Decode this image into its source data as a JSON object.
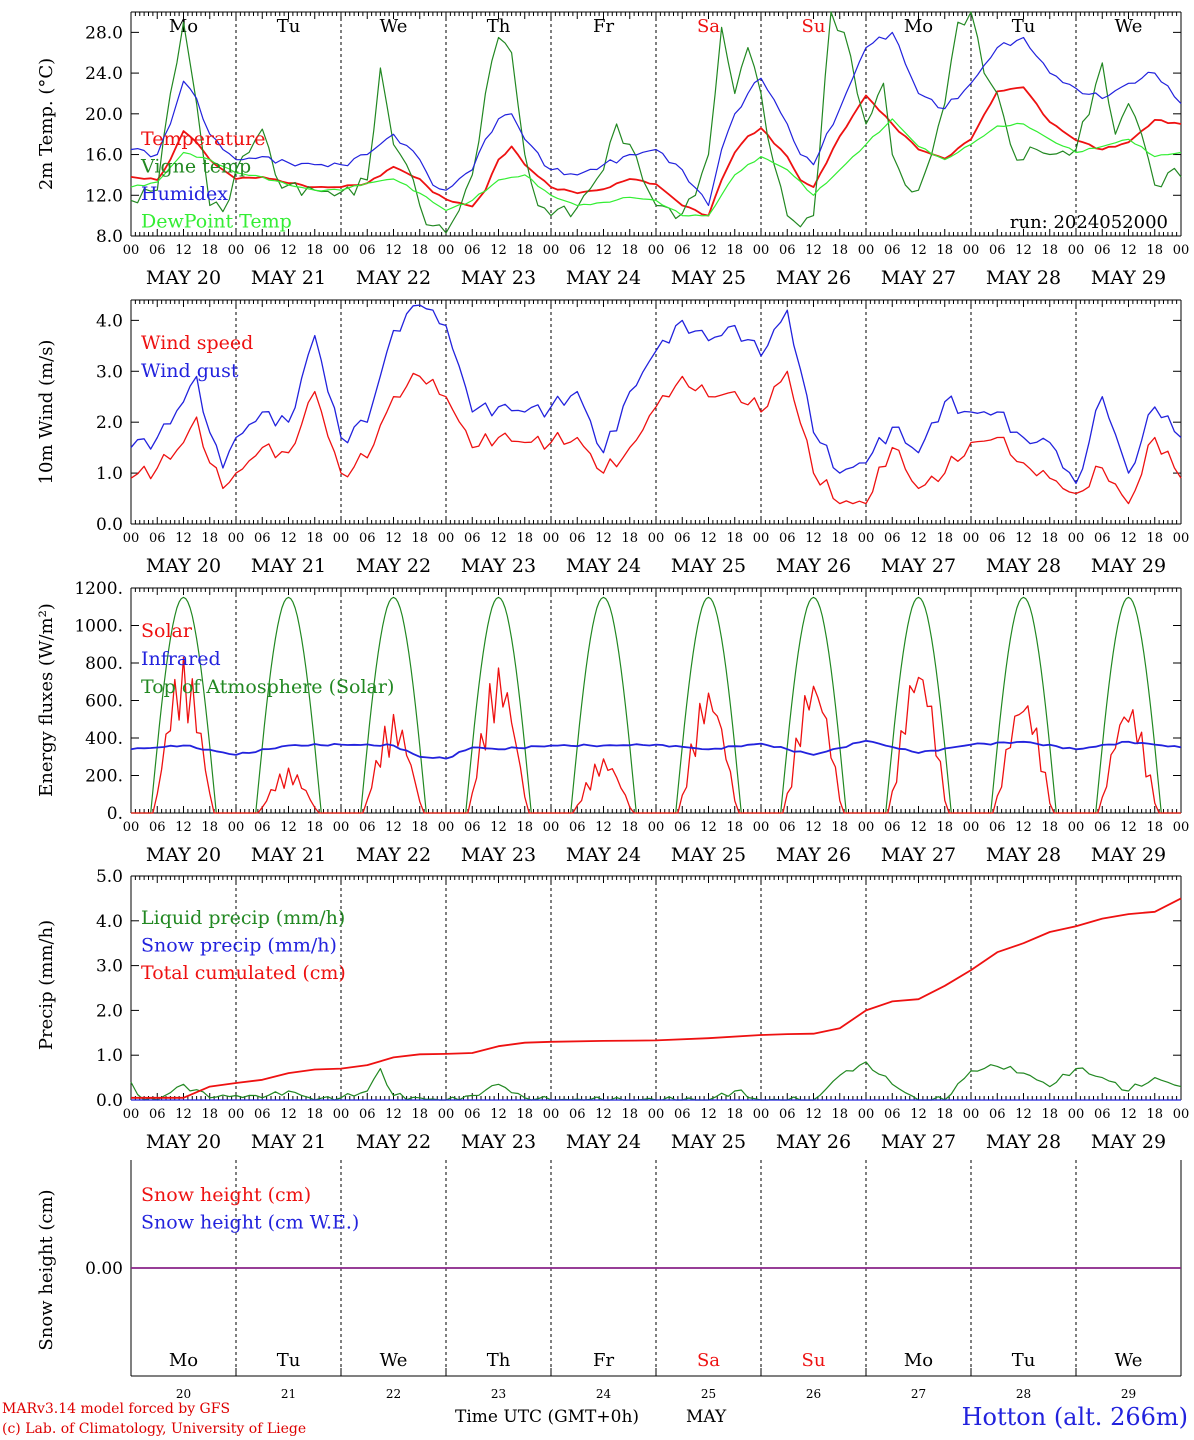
{
  "run_label": "run: 2024052000",
  "day_names": [
    "Mo",
    "Tu",
    "We",
    "Th",
    "Fr",
    "Sa",
    "Su",
    "Mo",
    "Tu",
    "We"
  ],
  "weekend_indices": [
    5,
    6
  ],
  "date_labels": [
    "MAY 20",
    "MAY 21",
    "MAY 22",
    "MAY 23",
    "MAY 24",
    "MAY 25",
    "MAY 26",
    "MAY 27",
    "MAY 28",
    "MAY 29"
  ],
  "hour_labels": [
    "00",
    "06",
    "12",
    "18"
  ],
  "day_numbers": [
    "20",
    "21",
    "22",
    "23",
    "24",
    "25",
    "26",
    "27",
    "28",
    "29"
  ],
  "month_label": "MAY",
  "x_axis_title": "Time UTC (GMT+0h)",
  "station": "Hotton (alt. 266m)",
  "credits": [
    "MARv3.14 model forced by GFS",
    "(c) Lab. of Climatology, University of Liege"
  ],
  "colors": {
    "red": "#ee1111",
    "green": "#228822",
    "blue": "#2222dd",
    "light_green": "#33ee33",
    "purple": "#882288"
  },
  "chart_data": [
    {
      "type": "line",
      "ylabel": "2m Temp. (°C)",
      "ylim": [
        8,
        30
      ],
      "yticks": [
        8.0,
        12.0,
        16.0,
        20.0,
        24.0,
        28.0
      ],
      "ytick_labels": [
        "8.0",
        "12.0",
        "16.0",
        "20.0",
        "24.0",
        "28.0"
      ],
      "x_unit": "hours since MAY 20 00 UTC",
      "series": [
        {
          "name": "Temperature",
          "color": "#ee1111",
          "x": [
            0,
            6,
            9,
            12,
            15,
            18,
            21,
            24,
            30,
            36,
            42,
            48,
            54,
            60,
            66,
            69,
            72,
            78,
            81,
            84,
            87,
            90,
            96,
            102,
            108,
            114,
            120,
            126,
            132,
            135,
            138,
            141,
            144,
            150,
            153,
            156,
            162,
            168,
            174,
            180,
            186,
            192,
            198,
            204,
            210,
            216,
            222,
            228,
            234,
            240
          ],
          "y": [
            13.8,
            13.5,
            15.5,
            18.3,
            17.2,
            15.5,
            14.5,
            13.6,
            13.8,
            13.2,
            12.8,
            12.8,
            13.2,
            14.8,
            13.6,
            12.3,
            11.6,
            10.9,
            12.5,
            15.5,
            16.8,
            15.0,
            12.8,
            12.2,
            12.6,
            13.6,
            13.1,
            11.0,
            10.0,
            13.5,
            16.2,
            17.8,
            18.6,
            15.8,
            13.5,
            12.8,
            17.8,
            21.8,
            19.0,
            16.5,
            15.6,
            17.5,
            22.2,
            22.6,
            19.2,
            17.4,
            16.5,
            17.2,
            19.4,
            19.0
          ]
        },
        {
          "name": "Vigne temp",
          "color": "#228822",
          "x": [
            0,
            6,
            9,
            12,
            15,
            18,
            21,
            24,
            30,
            33,
            36,
            42,
            48,
            54,
            57,
            60,
            63,
            66,
            69,
            72,
            75,
            78,
            81,
            84,
            87,
            90,
            93,
            96,
            102,
            108,
            111,
            114,
            117,
            120,
            126,
            129,
            132,
            135,
            138,
            141,
            144,
            147,
            150,
            153,
            156,
            160,
            163,
            166,
            168,
            172,
            174,
            177,
            180,
            183,
            186,
            189,
            192,
            195,
            198,
            201,
            204,
            207,
            210,
            216,
            222,
            225,
            228,
            231,
            234,
            237,
            240
          ],
          "y": [
            11.5,
            12.5,
            22.0,
            29.0,
            21.0,
            11.0,
            10.4,
            14.5,
            18.5,
            14.0,
            13.0,
            12.5,
            12.3,
            13.5,
            24.5,
            17.0,
            15.0,
            11.0,
            9.0,
            8.3,
            10.5,
            14.0,
            22.0,
            27.5,
            26.0,
            16.0,
            11.0,
            10.0,
            10.8,
            14.5,
            19.0,
            17.0,
            13.5,
            11.0,
            10.2,
            12.0,
            16.0,
            28.5,
            22.0,
            26.5,
            22.0,
            15.0,
            10.0,
            8.9,
            10.0,
            30.0,
            28.0,
            22.0,
            19.0,
            23.0,
            16.0,
            13.0,
            12.5,
            16.0,
            21.0,
            29.0,
            30.0,
            24.0,
            22.0,
            17.0,
            15.5,
            16.5,
            16.0,
            16.5,
            25.0,
            18.0,
            21.0,
            18.0,
            13.0,
            14.2,
            13.8
          ]
        },
        {
          "name": "Humidex",
          "color": "#2222dd",
          "x": [
            0,
            6,
            9,
            12,
            15,
            18,
            21,
            24,
            30,
            36,
            42,
            48,
            54,
            60,
            66,
            69,
            72,
            78,
            81,
            84,
            87,
            90,
            96,
            102,
            108,
            114,
            120,
            126,
            132,
            135,
            138,
            141,
            144,
            150,
            153,
            156,
            162,
            168,
            174,
            180,
            186,
            192,
            198,
            204,
            210,
            216,
            222,
            228,
            234,
            240
          ],
          "y": [
            16.5,
            16.0,
            19.0,
            23.2,
            21.5,
            18.0,
            16.5,
            15.5,
            15.8,
            15.2,
            15.0,
            15.0,
            16.0,
            18.0,
            15.5,
            13.0,
            12.5,
            14.5,
            17.5,
            19.5,
            20.0,
            17.5,
            14.5,
            14.0,
            15.0,
            16.0,
            16.5,
            14.5,
            11.0,
            16.5,
            20.0,
            22.0,
            23.5,
            19.0,
            16.0,
            15.0,
            20.5,
            26.5,
            28.0,
            22.0,
            20.5,
            23.0,
            26.5,
            27.5,
            24.0,
            22.5,
            21.5,
            23.0,
            24.0,
            21.0
          ]
        },
        {
          "name": "DewPoint Temp",
          "color": "#33ee33",
          "x": [
            0,
            6,
            12,
            18,
            24,
            30,
            36,
            42,
            48,
            54,
            60,
            66,
            72,
            78,
            84,
            90,
            96,
            102,
            108,
            114,
            120,
            126,
            132,
            138,
            144,
            150,
            156,
            162,
            168,
            174,
            180,
            186,
            192,
            198,
            204,
            210,
            216,
            222,
            228,
            234,
            240
          ],
          "y": [
            12.8,
            13.3,
            16.2,
            15.5,
            14.2,
            13.8,
            13.0,
            12.5,
            12.5,
            13.2,
            13.6,
            12.2,
            10.5,
            11.5,
            13.5,
            14.0,
            12.0,
            11.0,
            11.3,
            11.8,
            11.5,
            10.0,
            10.0,
            14.0,
            15.8,
            14.5,
            12.0,
            14.5,
            17.0,
            19.5,
            16.8,
            15.5,
            17.0,
            18.8,
            19.0,
            17.5,
            16.2,
            16.8,
            17.5,
            15.8,
            16.2
          ]
        }
      ],
      "legend_placement": "left"
    },
    {
      "type": "line",
      "ylabel": "10m Wind (m/s)",
      "ylim": [
        0,
        4.4
      ],
      "yticks": [
        0.0,
        1.0,
        2.0,
        3.0,
        4.0
      ],
      "ytick_labels": [
        "0.0",
        "1.0",
        "2.0",
        "3.0",
        "4.0"
      ],
      "x_unit": "hours since MAY 20 00 UTC",
      "series": [
        {
          "name": "Wind speed",
          "color": "#ee1111",
          "x": [
            0,
            6,
            12,
            15,
            18,
            21,
            24,
            30,
            36,
            42,
            48,
            54,
            60,
            66,
            72,
            78,
            84,
            90,
            96,
            102,
            108,
            114,
            120,
            126,
            132,
            138,
            144,
            150,
            156,
            162,
            168,
            174,
            180,
            186,
            192,
            198,
            204,
            210,
            216,
            222,
            228,
            234,
            240
          ],
          "y": [
            0.9,
            1.1,
            1.6,
            2.1,
            1.2,
            0.7,
            1.0,
            1.5,
            1.4,
            2.6,
            1.0,
            1.3,
            2.5,
            2.9,
            2.5,
            1.5,
            1.7,
            1.6,
            1.6,
            1.7,
            1.0,
            1.5,
            2.3,
            2.9,
            2.5,
            2.6,
            2.2,
            3.0,
            1.0,
            0.4,
            0.4,
            1.5,
            0.7,
            1.0,
            1.6,
            1.7,
            1.2,
            0.9,
            0.6,
            1.1,
            0.4,
            1.7,
            0.9
          ]
        },
        {
          "name": "Wind gust",
          "color": "#2222dd",
          "x": [
            0,
            6,
            12,
            15,
            18,
            21,
            24,
            30,
            36,
            42,
            48,
            54,
            60,
            66,
            72,
            78,
            84,
            90,
            96,
            102,
            108,
            114,
            120,
            126,
            132,
            138,
            144,
            150,
            156,
            162,
            168,
            174,
            180,
            186,
            192,
            198,
            204,
            210,
            216,
            222,
            228,
            234,
            240
          ],
          "y": [
            1.5,
            1.7,
            2.4,
            2.9,
            1.8,
            1.1,
            1.7,
            2.2,
            2.0,
            3.7,
            1.7,
            2.0,
            3.8,
            4.3,
            3.9,
            2.2,
            2.3,
            2.2,
            2.3,
            2.6,
            1.4,
            2.6,
            3.4,
            4.0,
            3.6,
            3.9,
            3.3,
            4.2,
            1.8,
            1.0,
            1.2,
            1.9,
            1.4,
            2.4,
            2.2,
            2.2,
            1.7,
            1.6,
            0.8,
            2.5,
            1.0,
            2.3,
            1.7
          ]
        }
      ],
      "legend_placement": "left"
    },
    {
      "type": "line",
      "ylabel": "Energy fluxes (W/m²)",
      "ylim": [
        0,
        1200
      ],
      "yticks": [
        0,
        200,
        400,
        600,
        800,
        1000,
        1200
      ],
      "ytick_labels": [
        "0.",
        "200.",
        "400.",
        "600.",
        "800.",
        "1000.",
        "1200."
      ],
      "x_unit": "hours since MAY 20 00 UTC",
      "toa_peak": 1150,
      "toa_daylight_hours": [
        4.5,
        19.5
      ],
      "series": [
        {
          "name": "Solar",
          "color": "#ee1111",
          "daily_peaks": [
            830,
            240,
            530,
            790,
            300,
            680,
            740,
            820,
            640,
            600
          ]
        },
        {
          "name": "Infrared",
          "color": "#2222dd",
          "x": [
            0,
            12,
            24,
            36,
            48,
            60,
            66,
            72,
            78,
            84,
            96,
            108,
            120,
            132,
            144,
            156,
            168,
            180,
            192,
            204,
            216,
            228,
            240
          ],
          "y": [
            340,
            360,
            310,
            360,
            365,
            360,
            300,
            290,
            350,
            340,
            360,
            360,
            365,
            340,
            370,
            310,
            385,
            320,
            365,
            380,
            340,
            380,
            350
          ]
        },
        {
          "name": "Top of Atmosphere (Solar)",
          "color": "#228822",
          "daily_peaks": [
            1150,
            1150,
            1150,
            1150,
            1150,
            1150,
            1150,
            1150,
            1150,
            1150
          ]
        }
      ],
      "legend_placement": "left"
    },
    {
      "type": "line",
      "ylabel": "Precip (mm/h)",
      "ylim": [
        0,
        5
      ],
      "yticks": [
        0.0,
        1.0,
        2.0,
        3.0,
        4.0,
        5.0
      ],
      "ytick_labels": [
        "0.0",
        "1.0",
        "2.0",
        "3.0",
        "4.0",
        "5.0"
      ],
      "x_unit": "hours since MAY 20 00 UTC",
      "series": [
        {
          "name": "Liquid precip (mm/h)",
          "color": "#228822",
          "x": [
            0,
            3,
            6,
            12,
            18,
            24,
            30,
            36,
            42,
            48,
            54,
            57,
            60,
            66,
            72,
            78,
            84,
            90,
            96,
            108,
            120,
            132,
            138,
            144,
            150,
            156,
            162,
            168,
            174,
            180,
            186,
            192,
            198,
            204,
            210,
            216,
            222,
            228,
            234,
            240
          ],
          "y": [
            0.4,
            0.0,
            0.0,
            0.35,
            0.05,
            0.1,
            0.05,
            0.2,
            0.0,
            0.05,
            0.2,
            0.7,
            0.1,
            0.05,
            0.0,
            0.1,
            0.35,
            0.05,
            0.0,
            0.0,
            0.0,
            0.0,
            0.2,
            0.0,
            0.0,
            0.0,
            0.55,
            0.85,
            0.35,
            0.0,
            0.0,
            0.65,
            0.75,
            0.6,
            0.3,
            0.7,
            0.5,
            0.2,
            0.5,
            0.3
          ]
        },
        {
          "name": "Snow precip (mm/h)",
          "color": "#2222dd",
          "x": [
            0,
            240
          ],
          "y": [
            0,
            0
          ]
        },
        {
          "name": "Total cumulated (cm)",
          "color": "#ee1111",
          "x": [
            0,
            6,
            12,
            18,
            24,
            30,
            36,
            42,
            48,
            54,
            60,
            66,
            72,
            78,
            84,
            90,
            96,
            108,
            120,
            132,
            144,
            150,
            156,
            162,
            168,
            174,
            180,
            186,
            192,
            198,
            204,
            210,
            216,
            222,
            228,
            234,
            240
          ],
          "y": [
            0.05,
            0.05,
            0.05,
            0.3,
            0.38,
            0.45,
            0.6,
            0.68,
            0.7,
            0.78,
            0.95,
            1.02,
            1.03,
            1.05,
            1.2,
            1.28,
            1.3,
            1.32,
            1.33,
            1.38,
            1.45,
            1.47,
            1.48,
            1.6,
            2.0,
            2.2,
            2.25,
            2.55,
            2.9,
            3.3,
            3.5,
            3.75,
            3.88,
            4.05,
            4.15,
            4.2,
            4.5
          ]
        }
      ],
      "legend_placement": "left"
    },
    {
      "type": "line",
      "ylabel": "Snow height (cm)",
      "ylim": [
        -1,
        1
      ],
      "yticks": [
        0.0
      ],
      "ytick_labels": [
        "0.00"
      ],
      "x_unit": "hours since MAY 20 00 UTC",
      "series": [
        {
          "name": "Snow height (cm)",
          "color": "#ee1111",
          "x": [
            0,
            240
          ],
          "y": [
            0,
            0
          ]
        },
        {
          "name": "Snow height (cm W.E.)",
          "color": "#2222dd",
          "x": [
            0,
            240
          ],
          "y": [
            0,
            0
          ]
        }
      ],
      "legend_placement": "left"
    }
  ]
}
